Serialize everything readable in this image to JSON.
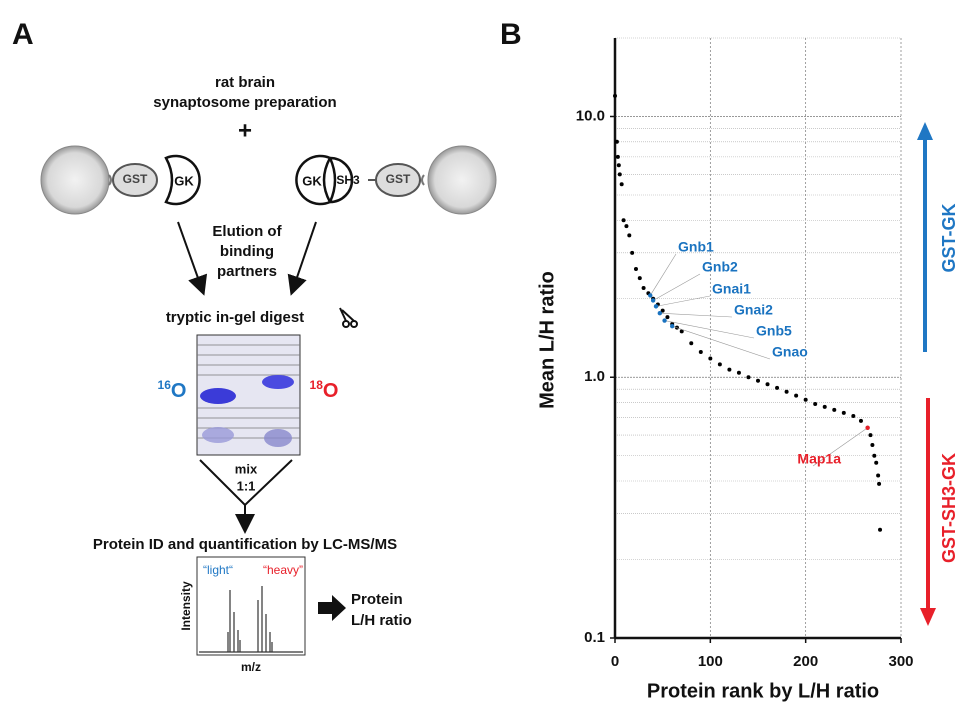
{
  "panels": {
    "a": "A",
    "b": "B"
  },
  "diagram": {
    "source": [
      "rat brain",
      "synaptosome preparation"
    ],
    "plus": "+",
    "left_construct": {
      "tag": "GST",
      "domain": "GK"
    },
    "right_construct": {
      "domain1": "GK",
      "domain2": "SH3",
      "tag": "GST"
    },
    "elution": [
      "Elution of",
      "binding",
      "partners"
    ],
    "digest": "tryptic in-gel digest",
    "left_isotope": {
      "mass": "16",
      "element": "O"
    },
    "right_isotope": {
      "mass": "18",
      "element": "O"
    },
    "mix": [
      "mix",
      "1:1"
    ],
    "quantification": "Protein ID and quantification by LC-MS/MS",
    "spectrum": {
      "light": "“light“",
      "heavy": "“heavy”",
      "ylabel": "Intensity",
      "xlabel": "m/z"
    },
    "result": [
      "Protein",
      "L/H ratio"
    ]
  },
  "chart_data": {
    "type": "scatter",
    "xlabel": "Protein rank by L/H ratio",
    "ylabel": "Mean L/H ratio",
    "xlim": [
      0,
      300
    ],
    "ylim": [
      0.1,
      20
    ],
    "log_y": true,
    "xticks": [
      0,
      100,
      200,
      300
    ],
    "yticks": [
      {
        "value": 0.1,
        "label": "0.1"
      },
      {
        "value": 1,
        "label": "1.0"
      },
      {
        "value": 10,
        "label": "10.0"
      }
    ],
    "yminor": [
      0.2,
      0.3,
      0.4,
      0.5,
      0.6,
      0.7,
      0.8,
      0.9,
      2,
      3,
      4,
      5,
      6,
      7,
      8,
      9,
      20
    ],
    "grid": true,
    "series": [
      {
        "color": "#000000",
        "x": [
          0,
          2,
          3,
          4,
          5,
          7,
          9,
          12,
          15,
          18,
          22,
          26,
          30,
          35,
          40,
          45,
          50,
          55,
          60,
          65,
          70,
          80,
          90,
          100,
          110,
          120,
          130,
          140,
          150,
          160,
          170,
          180,
          190,
          200,
          210,
          220,
          230,
          240,
          250,
          258,
          265,
          268,
          270,
          272,
          274,
          276,
          277,
          278
        ],
        "values": [
          12,
          8,
          7,
          6.5,
          6,
          5.5,
          4.0,
          3.8,
          3.5,
          3.0,
          2.6,
          2.4,
          2.2,
          2.1,
          2.0,
          1.9,
          1.8,
          1.7,
          1.6,
          1.55,
          1.5,
          1.35,
          1.25,
          1.18,
          1.12,
          1.07,
          1.04,
          1.0,
          0.97,
          0.94,
          0.91,
          0.88,
          0.85,
          0.82,
          0.79,
          0.77,
          0.75,
          0.73,
          0.71,
          0.68,
          0.64,
          0.6,
          0.55,
          0.5,
          0.47,
          0.42,
          0.39,
          0.26
        ]
      }
    ],
    "annotations": [
      {
        "text": "Gnb1",
        "x": 37,
        "y": 2.06,
        "color": "#1a73c0"
      },
      {
        "text": "Gnb2",
        "x": 40,
        "y": 1.97,
        "color": "#1a73c0"
      },
      {
        "text": "Gnai1",
        "x": 43,
        "y": 1.87,
        "color": "#1a73c0"
      },
      {
        "text": "Gnai2",
        "x": 47,
        "y": 1.76,
        "color": "#1a73c0"
      },
      {
        "text": "Gnb5",
        "x": 52,
        "y": 1.65,
        "color": "#1a73c0"
      },
      {
        "text": "Gnao",
        "x": 60,
        "y": 1.57,
        "color": "#1a73c0"
      },
      {
        "text": "Map1a",
        "x": 265,
        "y": 0.64,
        "color": "#e8202a"
      }
    ],
    "side_labels": [
      {
        "text": "GST-GK",
        "color": "#1f77c4"
      },
      {
        "text": "GST-SH3-GK",
        "color": "#e8202a"
      }
    ]
  }
}
